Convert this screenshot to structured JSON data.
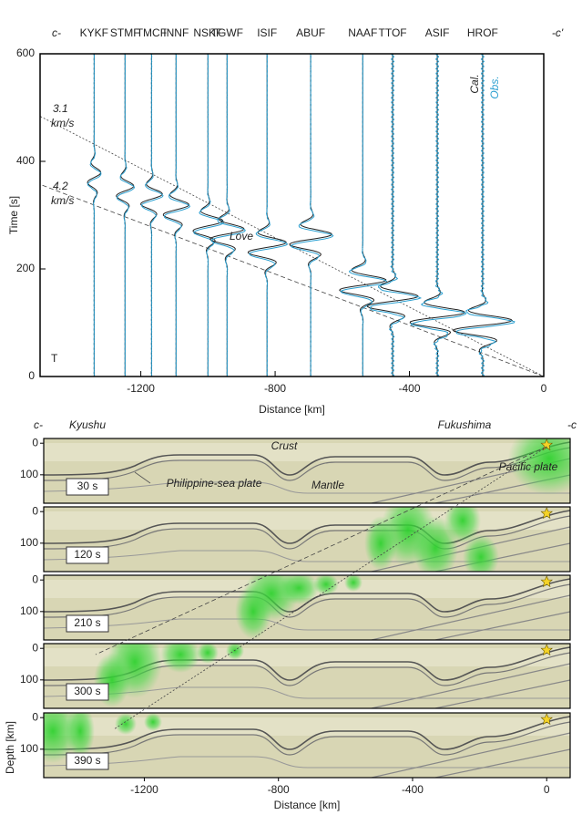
{
  "chart_data": [
    {
      "type": "record-section",
      "section_start": "c-",
      "section_end": "-c'",
      "x_label": "Distance [km]",
      "y_label": "Time  [s]",
      "xlim": [
        -1500,
        0
      ],
      "xticks": [
        -1200,
        -800,
        -400,
        0
      ],
      "ylim": [
        0,
        600
      ],
      "yticks": [
        0,
        200,
        400,
        600
      ],
      "stations": [
        "KYKF",
        "STMF",
        "TMCF",
        "INNF",
        "NSKF",
        "TGWF",
        "ISIF",
        "ABUF",
        "NAAF",
        "TTOF",
        "ASIF",
        "HROF"
      ],
      "distances": [
        -1339,
        -1247,
        -1168,
        -1095,
        -1000,
        -943,
        -824,
        -694,
        -539,
        -450,
        -317,
        -182
      ],
      "arrival_times": [
        370,
        345,
        330,
        310,
        280,
        265,
        240,
        255,
        170,
        140,
        110,
        95
      ],
      "series": [
        {
          "name": "Cal.",
          "color": "#222222"
        },
        {
          "name": "Obs.",
          "color": "#2a9fd0"
        }
      ],
      "velocities": [
        3.1,
        4.2
      ],
      "velocity_unit": "km/s",
      "phase_label": "Love",
      "component": "T"
    },
    {
      "type": "snapshot",
      "section_start": "c-",
      "section_end": "-c",
      "x_label": "Distance [km]",
      "y_label": "Depth [km]",
      "xlim": [
        -1500,
        70
      ],
      "xticks": [
        -1200,
        -800,
        -400,
        0
      ],
      "ylim": [
        -15,
        190
      ],
      "yticks": [
        0,
        100
      ],
      "panels": [
        {
          "value": 30,
          "label": "30 s"
        },
        {
          "value": 120,
          "label": "120 s"
        },
        {
          "value": 210,
          "label": "210 s"
        },
        {
          "value": 300,
          "label": "300 s"
        },
        {
          "value": 390,
          "label": "390 s"
        }
      ],
      "annotations": [
        "Kyushu",
        "Fukushima",
        "Crust",
        "Mantle",
        "Philippine-sea plate",
        "Pacific plate"
      ]
    }
  ]
}
